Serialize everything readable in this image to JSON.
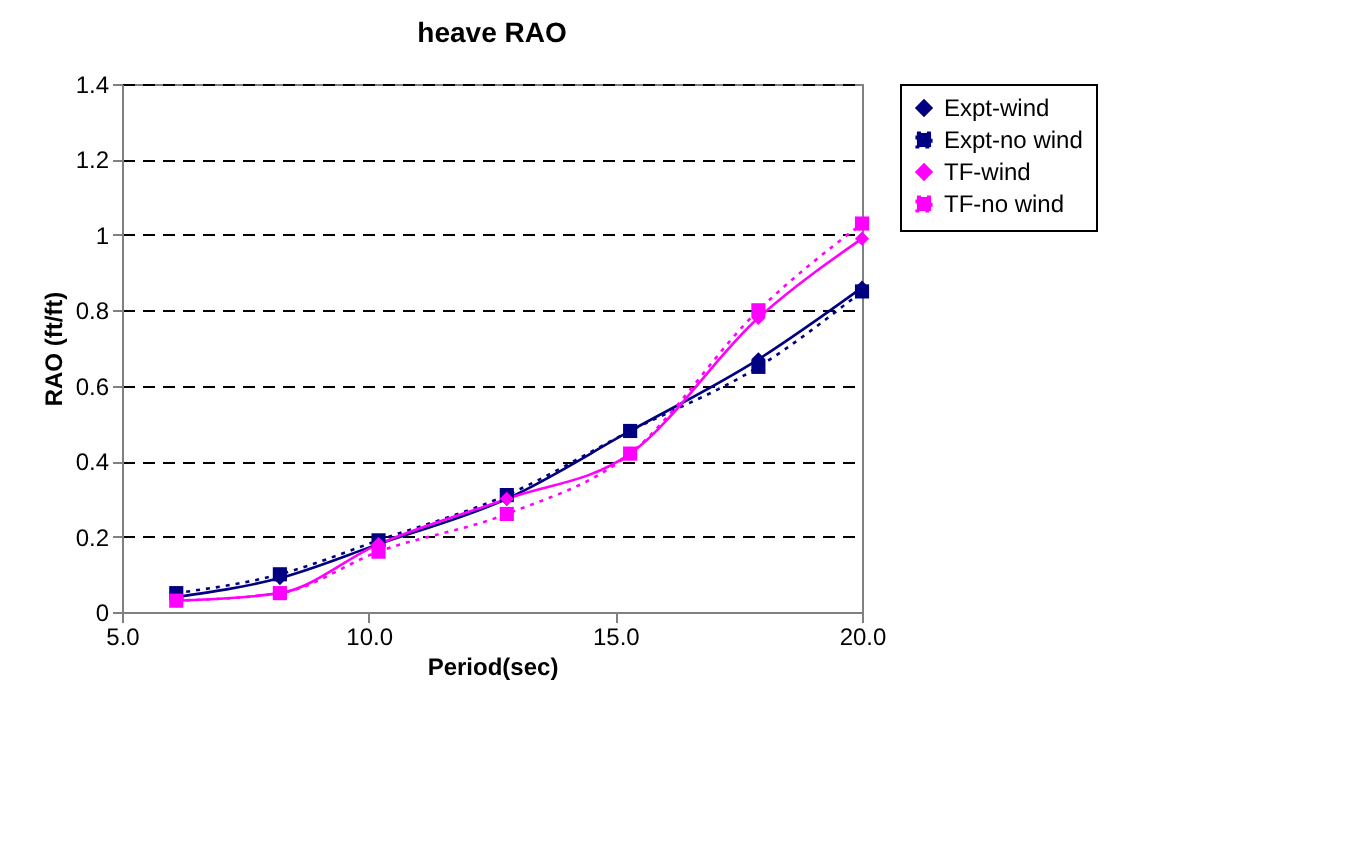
{
  "chart_data": {
    "type": "line",
    "title": "heave RAO",
    "xlabel": "Period(sec)",
    "ylabel": "RAO (ft/ft)",
    "x": [
      6.1,
      8.2,
      10.2,
      12.8,
      15.3,
      17.9,
      20
    ],
    "series": [
      {
        "name": "Expt-wind",
        "color": "#000080",
        "marker": "diamond",
        "line_style": "solid",
        "values": [
          0.04,
          0.09,
          0.18,
          0.3,
          0.48,
          0.67,
          0.86
        ]
      },
      {
        "name": "Expt-no wind",
        "color": "#000080",
        "marker": "square",
        "line_style": "dotted",
        "values": [
          0.05,
          0.1,
          0.19,
          0.31,
          0.48,
          0.65,
          0.85
        ]
      },
      {
        "name": "TF-wind",
        "color": "#ff00ff",
        "marker": "diamond",
        "line_style": "solid",
        "values": [
          0.03,
          0.05,
          0.18,
          0.3,
          0.42,
          0.78,
          0.99
        ]
      },
      {
        "name": "TF-no wind",
        "color": "#ff00ff",
        "marker": "square",
        "line_style": "dotted",
        "values": [
          0.03,
          0.05,
          0.16,
          0.26,
          0.42,
          0.8,
          1.03
        ]
      }
    ],
    "xlim": [
      5,
      20
    ],
    "xticks": [
      {
        "value": 5,
        "label": "5.0"
      },
      {
        "value": 10,
        "label": "10.0"
      },
      {
        "value": 15,
        "label": "15.0"
      },
      {
        "value": 20,
        "label": "20.0"
      }
    ],
    "ylim": [
      0,
      1.4
    ],
    "yticks": [
      0,
      0.2,
      0.4,
      0.6,
      0.8,
      1,
      1.2,
      1.4
    ],
    "grid": "y",
    "legend": "right"
  }
}
